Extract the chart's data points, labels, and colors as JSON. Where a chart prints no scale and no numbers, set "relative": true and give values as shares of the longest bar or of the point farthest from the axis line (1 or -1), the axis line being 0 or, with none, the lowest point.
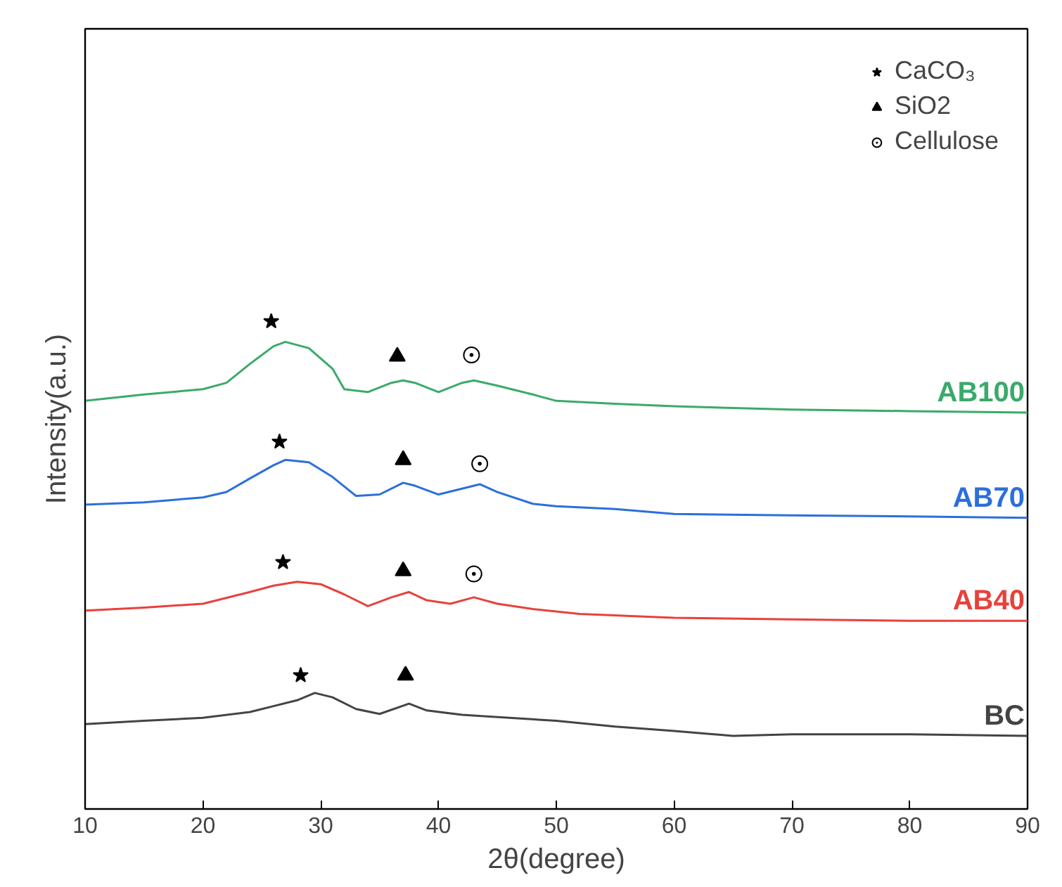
{
  "chart_data": {
    "type": "line",
    "relative": true,
    "xlabel": "2θ(degree)",
    "ylabel": "Intensity(a.u.)",
    "xlim": [
      10,
      90
    ],
    "xticks": [
      10,
      20,
      30,
      40,
      50,
      60,
      70,
      80,
      90
    ],
    "grid": false,
    "legend": "top right",
    "tick_labels": "x",
    "series": [
      {
        "name": "AB100",
        "color": "#3aaa6a",
        "x": [
          10,
          15,
          20,
          22,
          24,
          26,
          27,
          29,
          31,
          32,
          34,
          36,
          37,
          38,
          40,
          42,
          43,
          45,
          48,
          50,
          55,
          60,
          70,
          80,
          90
        ],
        "values": [
          0.837,
          0.85,
          0.861,
          0.874,
          0.913,
          0.949,
          0.958,
          0.945,
          0.903,
          0.861,
          0.855,
          0.874,
          0.879,
          0.874,
          0.855,
          0.874,
          0.879,
          0.868,
          0.85,
          0.837,
          0.831,
          0.826,
          0.819,
          0.816,
          0.813
        ]
      },
      {
        "name": "AB70",
        "color": "#2b6fdc",
        "x": [
          10,
          15,
          20,
          22,
          24,
          26,
          27,
          29,
          31,
          33,
          35,
          37,
          38,
          40,
          42,
          43.5,
          45,
          48,
          50,
          55,
          60,
          70,
          80,
          90
        ],
        "values": [
          0.624,
          0.629,
          0.639,
          0.65,
          0.678,
          0.705,
          0.716,
          0.711,
          0.681,
          0.642,
          0.645,
          0.669,
          0.663,
          0.645,
          0.657,
          0.666,
          0.65,
          0.626,
          0.621,
          0.615,
          0.605,
          0.602,
          0.6,
          0.597
        ]
      },
      {
        "name": "AB40",
        "color": "#e8413c",
        "x": [
          10,
          15,
          20,
          24,
          26,
          28,
          30,
          32,
          34,
          36,
          37.5,
          39,
          41,
          43,
          45,
          48,
          52,
          60,
          70,
          80,
          90
        ],
        "values": [
          0.407,
          0.413,
          0.421,
          0.445,
          0.458,
          0.466,
          0.461,
          0.44,
          0.416,
          0.434,
          0.445,
          0.428,
          0.421,
          0.434,
          0.421,
          0.41,
          0.4,
          0.392,
          0.389,
          0.386,
          0.386
        ]
      },
      {
        "name": "BC",
        "color": "#444444",
        "x": [
          10,
          15,
          20,
          24,
          26,
          28,
          29.5,
          31,
          33,
          35,
          37.5,
          39,
          42,
          46,
          50,
          55,
          60,
          65,
          70,
          80,
          90
        ],
        "values": [
          0.174,
          0.181,
          0.187,
          0.199,
          0.211,
          0.223,
          0.238,
          0.229,
          0.205,
          0.195,
          0.216,
          0.202,
          0.193,
          0.187,
          0.181,
          0.169,
          0.16,
          0.15,
          0.153,
          0.153,
          0.15
        ]
      },
      {
        "name": "CaCO₃",
        "type": "scatter",
        "marker": "star",
        "color": "#000000",
        "x": [
          25.8,
          26.5,
          26.8,
          28.3
        ],
        "values": [
          1,
          0.753,
          0.506,
          0.274
        ]
      },
      {
        "name": "SiO2",
        "type": "scatter",
        "marker": "triangle",
        "color": "#000000",
        "x": [
          36.5,
          37,
          37,
          37.2
        ],
        "values": [
          0.928,
          0.716,
          0.488,
          0.274
        ]
      },
      {
        "name": "Cellulose",
        "type": "scatter",
        "marker": "circle",
        "color": "#000000",
        "x": [
          42.8,
          43.5,
          43
        ],
        "values": [
          0.931,
          0.708,
          0.482
        ]
      }
    ]
  }
}
